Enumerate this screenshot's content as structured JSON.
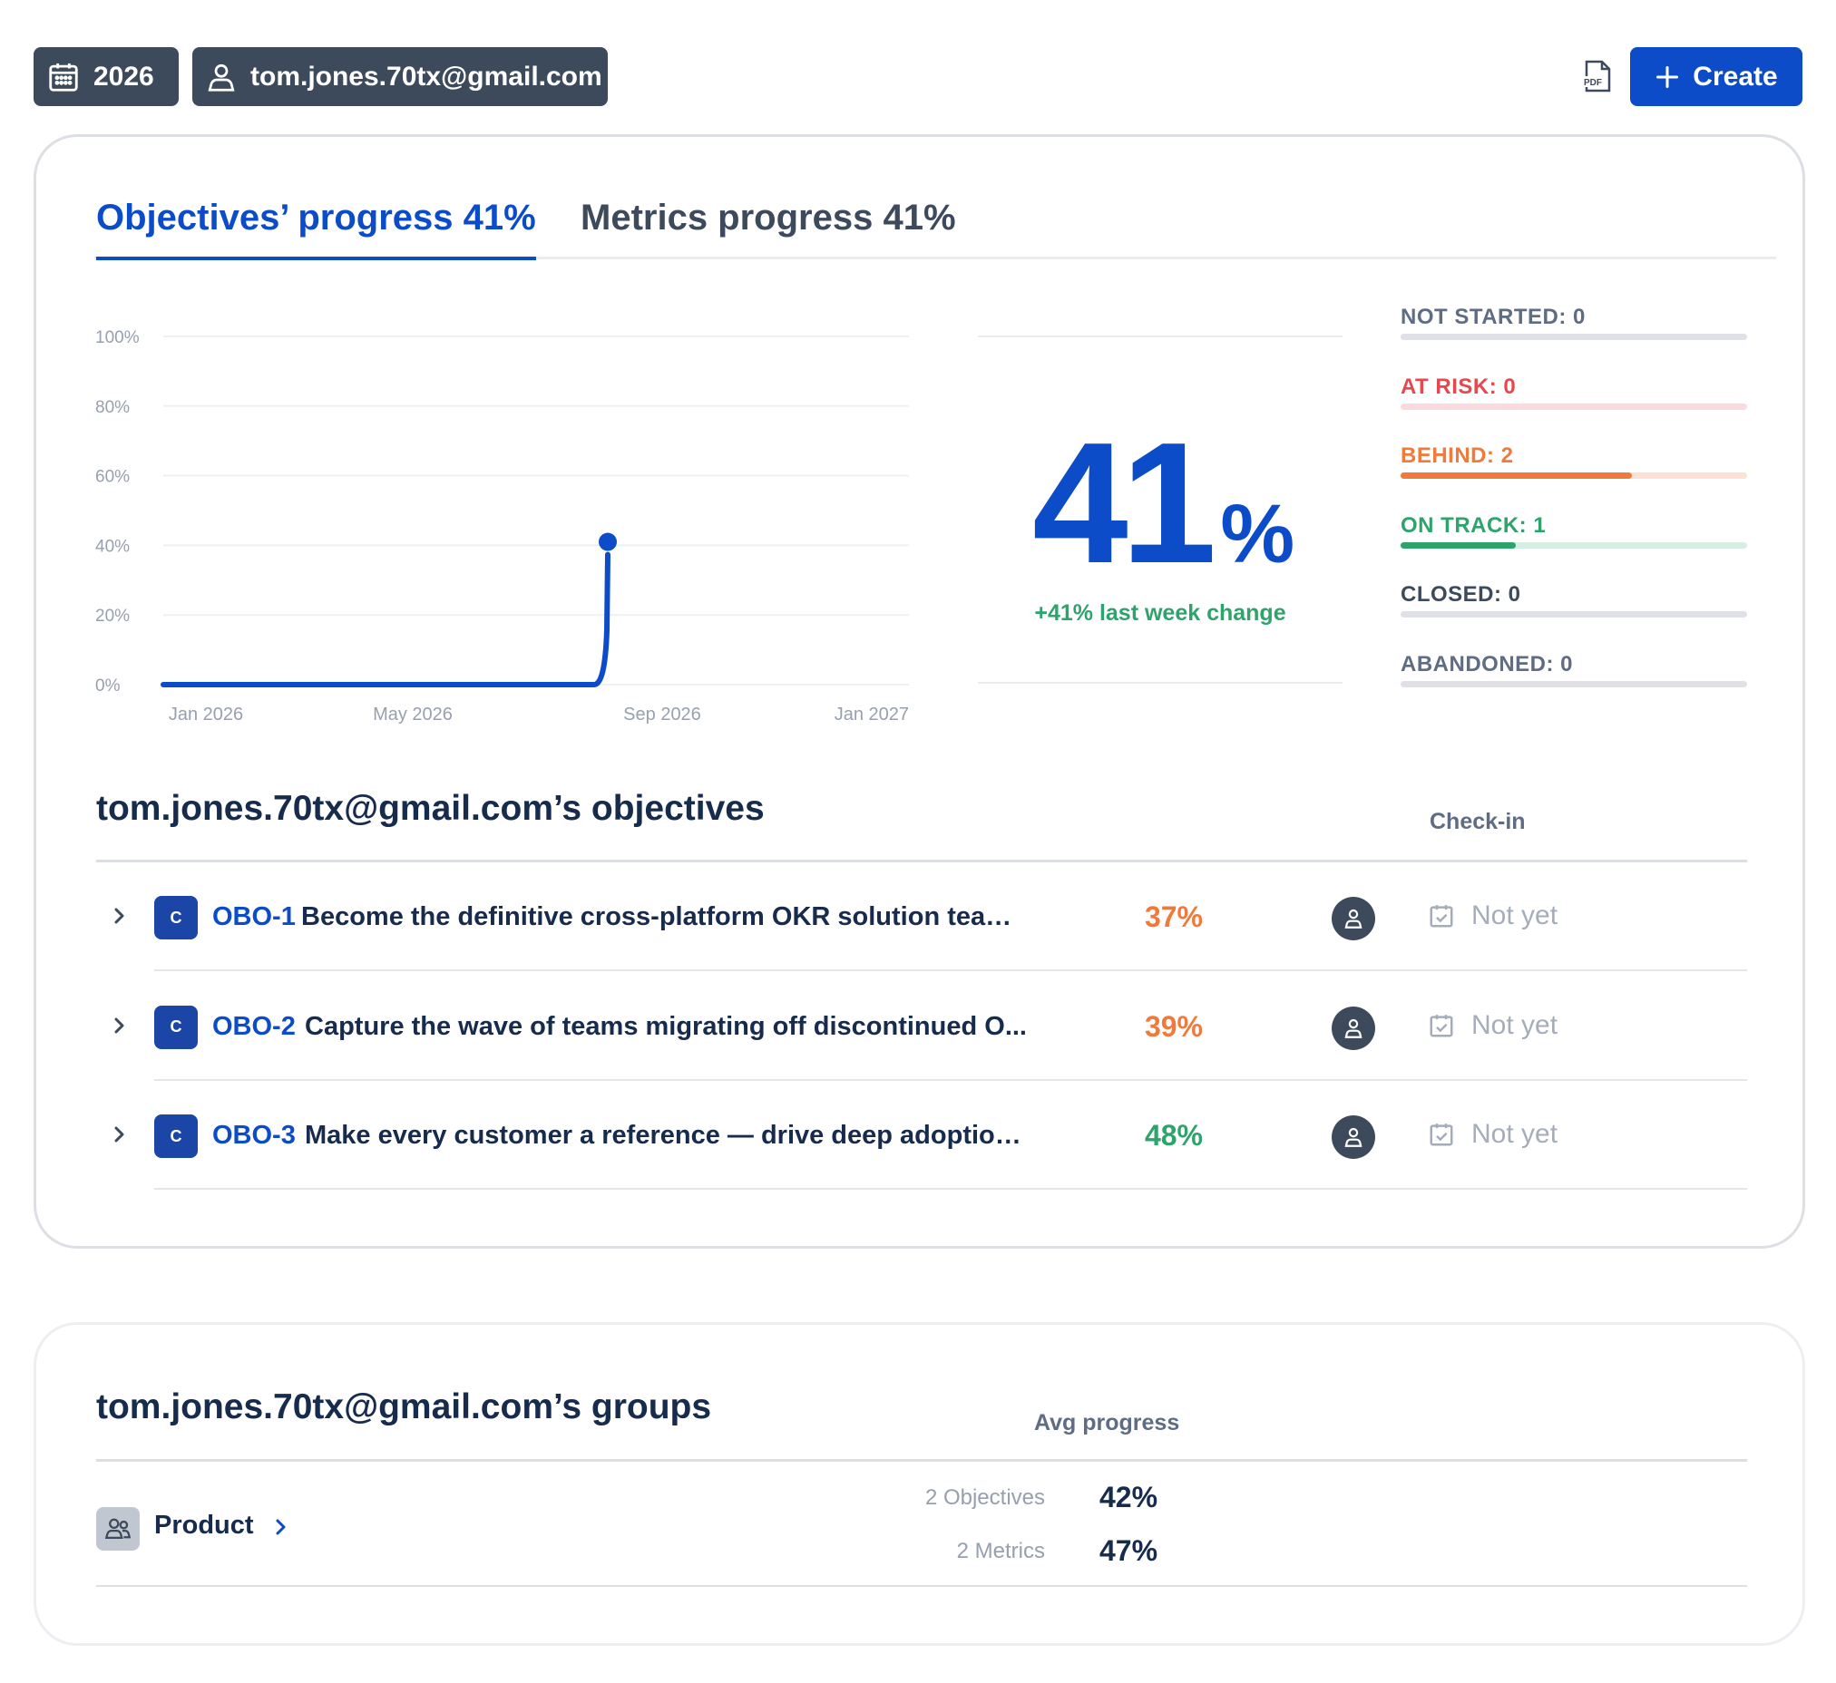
{
  "toolbar": {
    "year": "2026",
    "user": "tom.jones.70tx@gmail.com",
    "pdf_icon": "pdf-icon",
    "create_label": "Create"
  },
  "tabs": [
    {
      "label": "Objectives’ progress 41%",
      "active": true
    },
    {
      "label": "Metrics progress 41%",
      "active": false
    }
  ],
  "chart_data": {
    "type": "line",
    "x": [
      "Jan 2026",
      "Aug 2026",
      "Aug 2026"
    ],
    "x_ticks": [
      "Jan 2026",
      "May 2026",
      "Sep 2026",
      "Jan 2027"
    ],
    "y_ticks": [
      "0%",
      "20%",
      "40%",
      "60%",
      "80%",
      "100%"
    ],
    "ylim": [
      0,
      100
    ],
    "series": [
      {
        "values": [
          0,
          0,
          41
        ]
      }
    ],
    "grid": true,
    "color": "#0c4cc9"
  },
  "summary": {
    "value": "41",
    "unit": "%",
    "change": "+41% last week change"
  },
  "statuses": [
    {
      "label": "NOT STARTED: 0",
      "color": "#5e6c84",
      "track": "#dfe1e6",
      "fraction": 0
    },
    {
      "label": "AT RISK: 0",
      "color": "#e5484d",
      "track": "#fbd9dc",
      "fraction": 0
    },
    {
      "label": "BEHIND: 2",
      "color": "#f07a3c",
      "track": "#fce1d6",
      "fraction": 0.667
    },
    {
      "label": "ON TRACK: 1",
      "color": "#2ea36b",
      "track": "#d3efe2",
      "fraction": 0.333
    },
    {
      "label": "CLOSED: 0",
      "color": "#3d4a5c",
      "track": "#dfe1e6",
      "fraction": 0
    },
    {
      "label": "ABANDONED: 0",
      "color": "#5e6c84",
      "track": "#dfe1e6",
      "fraction": 0
    }
  ],
  "objectives": {
    "title": "tom.jones.70tx@gmail.com’s objectives",
    "checkin_header": "Check-in",
    "items": [
      {
        "badge": "C",
        "key": "OBO-1",
        "title": "Become the definitive cross-platform OKR solution team...",
        "progress": "37%",
        "progress_color": "#f07a3c",
        "checkin": "Not yet"
      },
      {
        "badge": "C",
        "key": "OBO-2",
        "title": "Capture the wave of teams migrating off discontinued O...",
        "progress": "39%",
        "progress_color": "#f07a3c",
        "checkin": "Not yet"
      },
      {
        "badge": "C",
        "key": "OBO-3",
        "title": "Make every customer a reference — drive deep adoption...",
        "progress": "48%",
        "progress_color": "#2ea36b",
        "checkin": "Not yet"
      }
    ]
  },
  "groups": {
    "title": "tom.jones.70tx@gmail.com’s groups",
    "avg_header": "Avg progress",
    "items": [
      {
        "name": "Product",
        "objectives_label": "2 Objectives",
        "objectives_value": "42%",
        "metrics_label": "2 Metrics",
        "metrics_value": "47%"
      }
    ]
  }
}
